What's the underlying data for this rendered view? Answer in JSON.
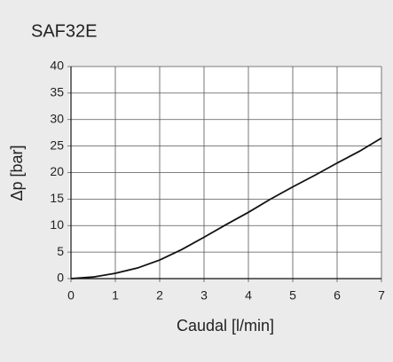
{
  "chart_data": {
    "type": "line",
    "title": "SAF32E",
    "x_label": "Caudal [l/min]",
    "y_label": "Δp [bar]",
    "x": [
      0,
      0.5,
      1,
      1.5,
      2,
      2.5,
      3,
      3.5,
      4,
      4.5,
      5,
      5.5,
      6,
      6.5,
      7
    ],
    "series": [
      {
        "name": "SAF32E",
        "color": "#111111",
        "values": [
          0,
          0.3,
          1,
          2,
          3.5,
          5.5,
          7.8,
          10.2,
          12.5,
          15,
          17.3,
          19.5,
          21.8,
          24,
          26.5
        ]
      }
    ],
    "xlim": [
      0,
      7
    ],
    "xticks": [
      0,
      1,
      2,
      3,
      4,
      5,
      6,
      7
    ],
    "ylim": [
      0,
      40
    ],
    "yticks": [
      0,
      5,
      10,
      15,
      20,
      25,
      30,
      35,
      40
    ],
    "grid": true
  }
}
